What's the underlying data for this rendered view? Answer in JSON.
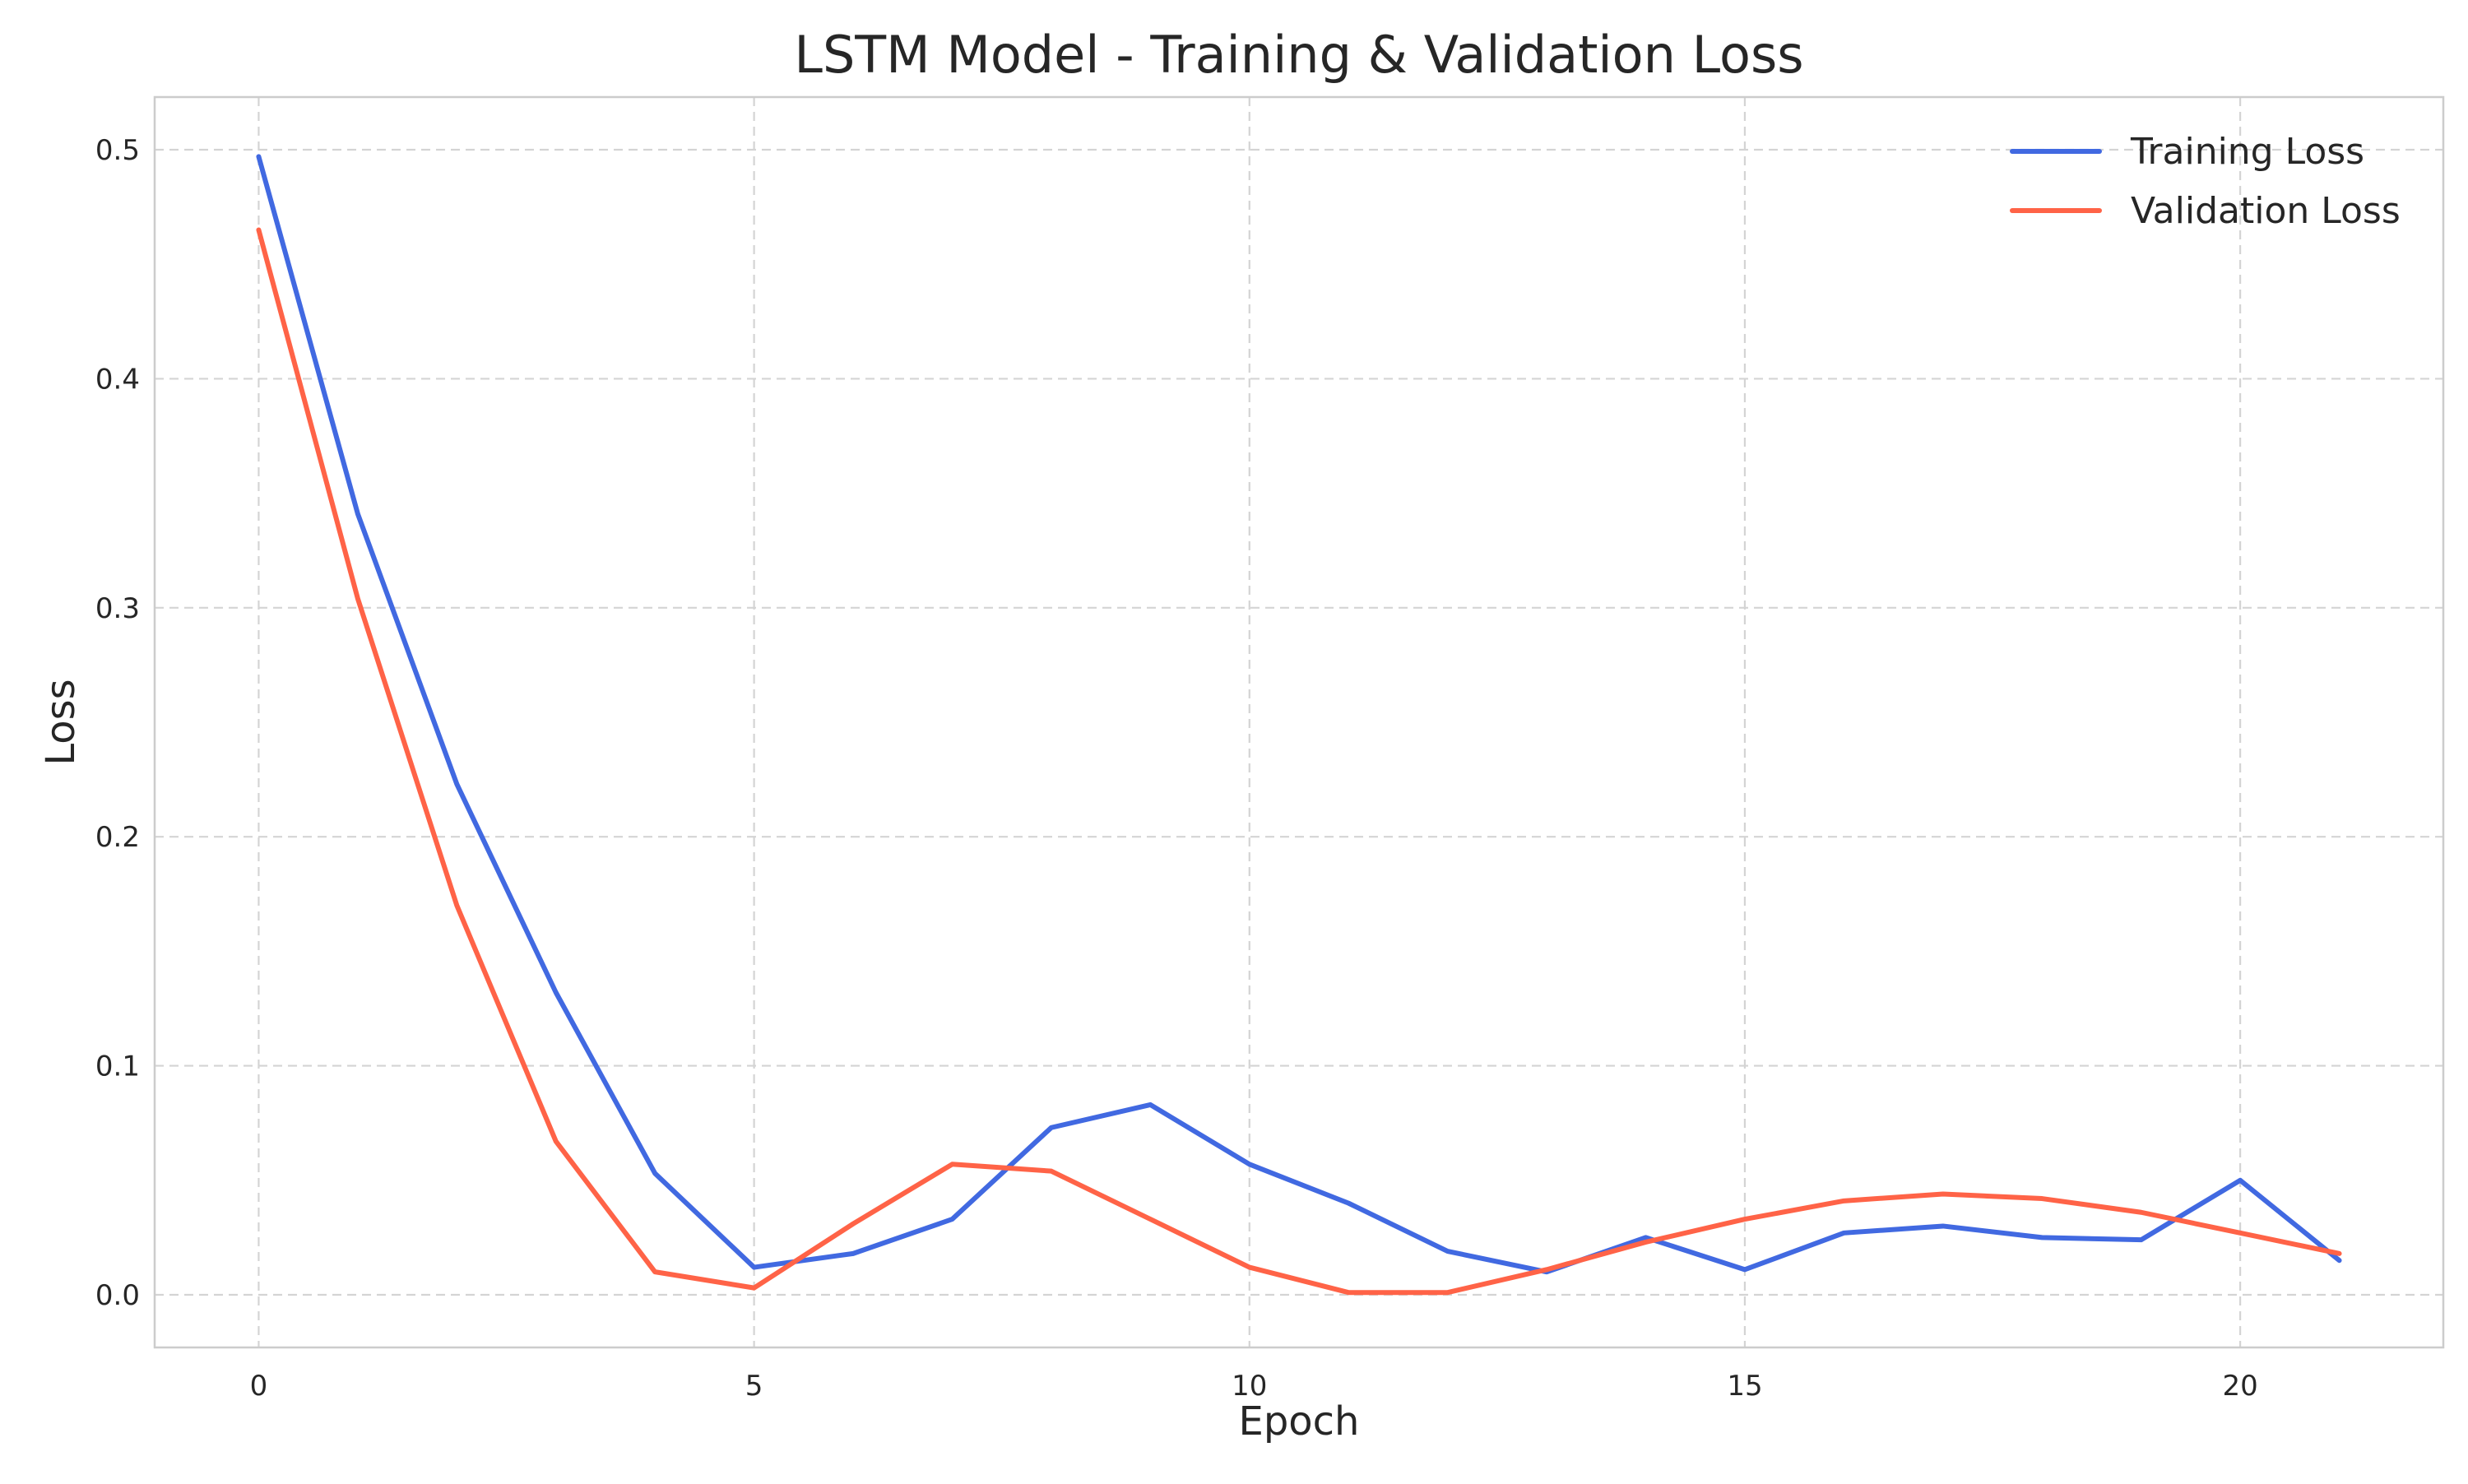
{
  "chart_data": {
    "type": "line",
    "title": "LSTM Model - Training & Validation Loss",
    "xlabel": "Epoch",
    "ylabel": "Loss",
    "x": [
      0,
      1,
      2,
      3,
      4,
      5,
      6,
      7,
      8,
      9,
      10,
      11,
      12,
      13,
      14,
      15,
      16,
      17,
      18,
      19,
      20,
      21
    ],
    "xlim": [
      -1.05,
      22.05
    ],
    "ylim": [
      -0.023,
      0.523
    ],
    "x_ticks": [
      0,
      5,
      10,
      15,
      20
    ],
    "x_tick_labels": [
      "0",
      "5",
      "10",
      "15",
      "20"
    ],
    "y_ticks": [
      0.0,
      0.1,
      0.2,
      0.3,
      0.4,
      0.5
    ],
    "y_tick_labels": [
      "0.0",
      "0.1",
      "0.2",
      "0.3",
      "0.4",
      "0.5"
    ],
    "grid": true,
    "legend_position": "top-right",
    "series": [
      {
        "name": "Training Loss",
        "color": "#4169e1",
        "values": [
          0.497,
          0.341,
          0.223,
          0.132,
          0.053,
          0.012,
          0.018,
          0.033,
          0.073,
          0.083,
          0.057,
          0.04,
          0.019,
          0.01,
          0.025,
          0.011,
          0.027,
          0.03,
          0.025,
          0.024,
          0.05,
          0.015
        ]
      },
      {
        "name": "Validation Loss",
        "color": "#ff6347",
        "values": [
          0.465,
          0.304,
          0.17,
          0.067,
          0.01,
          0.003,
          0.031,
          0.057,
          0.054,
          0.033,
          0.012,
          0.001,
          0.001,
          0.011,
          0.023,
          0.033,
          0.041,
          0.044,
          0.042,
          0.036,
          0.027,
          0.018
        ]
      }
    ]
  }
}
